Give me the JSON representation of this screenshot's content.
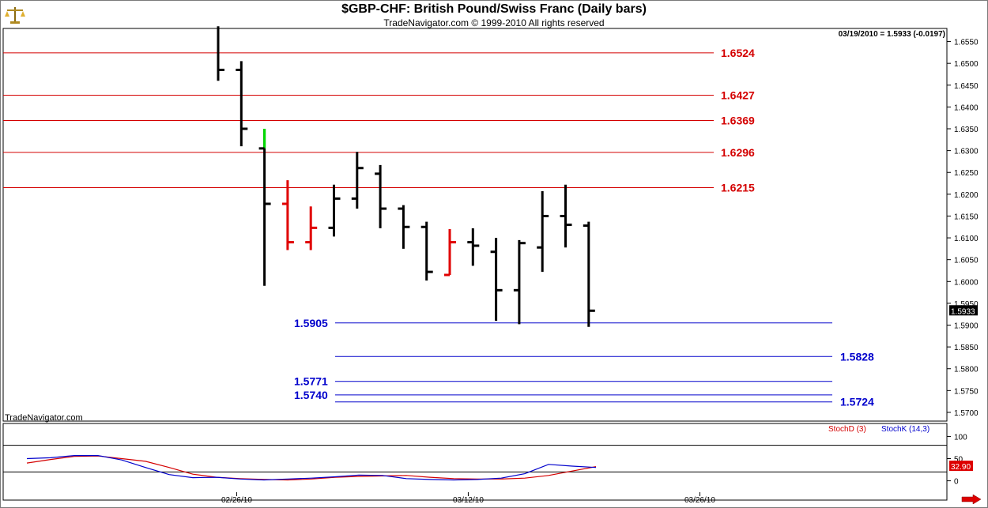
{
  "header": {
    "title": "$GBP-CHF:  British Pound/Swiss Franc  (Daily bars)",
    "subtitle": "TradeNavigator.com © 1999-2010 All rights reserved",
    "readout": "03/19/2010 = 1.5933 (-0.0197)",
    "brand": "TradeNavigator.com"
  },
  "colors": {
    "background": "#ffffff",
    "resistance": "#d40000",
    "support": "#0000cc",
    "bar_default": "#000000",
    "bar_down_highlight": "#e00000",
    "bar_up_highlight": "#00dd00",
    "stoch_d": "#d40000",
    "stoch_k": "#0000cc",
    "last_price_box": "#000000",
    "stoch_value_box": "#dd0000"
  },
  "icons": {
    "logo": "balance-scale-icon",
    "scroll": "arrow-right-icon"
  },
  "chart_data": [
    {
      "type": "ohlc",
      "title": "$GBP-CHF:  British Pound/Swiss Franc  (Daily bars)",
      "ylim": [
        1.568,
        1.658
      ],
      "yticks": [
        "1.6550",
        "1.6500",
        "1.6450",
        "1.6400",
        "1.6350",
        "1.6300",
        "1.6250",
        "1.6200",
        "1.6150",
        "1.6100",
        "1.6050",
        "1.6000",
        "1.5950",
        "1.5900",
        "1.5850",
        "1.5800",
        "1.5750",
        "1.5700"
      ],
      "xticks": [
        {
          "label": "02/26/10",
          "bar": 0.8
        },
        {
          "label": "03/12/10",
          "bar": 10.8
        },
        {
          "label": "03/26/10",
          "bar": 20.8
        }
      ],
      "last_price": "1.5933",
      "bars": [
        {
          "high": 1.6585,
          "low": 1.646,
          "close": 1.6485,
          "color": "black"
        },
        {
          "high": 1.6505,
          "low": 1.631,
          "open": 1.6485,
          "close": 1.635,
          "color": "black"
        },
        {
          "high": 1.635,
          "low": 1.599,
          "open": 1.6305,
          "close": 1.6178,
          "color": "black",
          "top_green": 1.6305
        },
        {
          "high": 1.6232,
          "low": 1.6072,
          "open": 1.6178,
          "close": 1.609,
          "color": "red"
        },
        {
          "high": 1.6172,
          "low": 1.6072,
          "open": 1.609,
          "close": 1.6123,
          "color": "red"
        },
        {
          "high": 1.6222,
          "low": 1.6103,
          "open": 1.6123,
          "close": 1.619,
          "color": "black"
        },
        {
          "high": 1.6297,
          "low": 1.6167,
          "open": 1.619,
          "close": 1.626,
          "color": "black"
        },
        {
          "high": 1.6267,
          "low": 1.6122,
          "open": 1.6247,
          "close": 1.6167,
          "color": "black"
        },
        {
          "high": 1.6175,
          "low": 1.6075,
          "open": 1.6167,
          "close": 1.6125,
          "color": "black"
        },
        {
          "high": 1.6137,
          "low": 1.6002,
          "open": 1.6125,
          "close": 1.6022,
          "color": "black"
        },
        {
          "high": 1.612,
          "low": 1.6015,
          "open": 1.6015,
          "close": 1.609,
          "color": "red"
        },
        {
          "high": 1.6122,
          "low": 1.6036,
          "open": 1.609,
          "close": 1.6082,
          "color": "black"
        },
        {
          "high": 1.61,
          "low": 1.591,
          "open": 1.6068,
          "close": 1.598,
          "color": "black"
        },
        {
          "high": 1.6095,
          "low": 1.5902,
          "open": 1.598,
          "close": 1.6088,
          "color": "black"
        },
        {
          "high": 1.6207,
          "low": 1.6022,
          "open": 1.6078,
          "close": 1.615,
          "color": "black"
        },
        {
          "high": 1.6222,
          "low": 1.6078,
          "open": 1.615,
          "close": 1.613,
          "color": "black"
        },
        {
          "high": 1.6137,
          "low": 1.5896,
          "open": 1.6128,
          "close": 1.5933,
          "color": "black"
        }
      ],
      "resistance_levels": [
        {
          "value": 1.6524,
          "label": "1.6524"
        },
        {
          "value": 1.6427,
          "label": "1.6427"
        },
        {
          "value": 1.6369,
          "label": "1.6369"
        },
        {
          "value": 1.6296,
          "label": "1.6296"
        },
        {
          "value": 1.6215,
          "label": "1.6215"
        }
      ],
      "support_levels": [
        {
          "value": 1.5905,
          "label": "1.5905",
          "label_side": "left"
        },
        {
          "value": 1.5828,
          "label": "1.5828",
          "label_side": "right"
        },
        {
          "value": 1.5771,
          "label": "1.5771",
          "label_side": "left"
        },
        {
          "value": 1.574,
          "label": "1.5740",
          "label_side": "left"
        },
        {
          "value": 1.5724,
          "label": "1.5724",
          "label_side": "right"
        }
      ]
    },
    {
      "type": "line",
      "title": "",
      "ylim": [
        -15,
        115
      ],
      "yticks": [
        "100",
        "50",
        "0"
      ],
      "series": [
        {
          "name": "StochD (3)",
          "color": "#d40000",
          "values": [
            40,
            48,
            55,
            56,
            50,
            44,
            30,
            15,
            8,
            5,
            3,
            2,
            4,
            8,
            10,
            11,
            12,
            8,
            5,
            4,
            4,
            6,
            12,
            22,
            32
          ]
        },
        {
          "name": "StochK (14,3)",
          "color": "#0000cc",
          "values": [
            50,
            52,
            57,
            57,
            47,
            30,
            14,
            7,
            8,
            4,
            2,
            4,
            6,
            9,
            13,
            12,
            5,
            3,
            2,
            3,
            6,
            16,
            37,
            33,
            30
          ]
        }
      ],
      "last_value": "32.90"
    }
  ]
}
